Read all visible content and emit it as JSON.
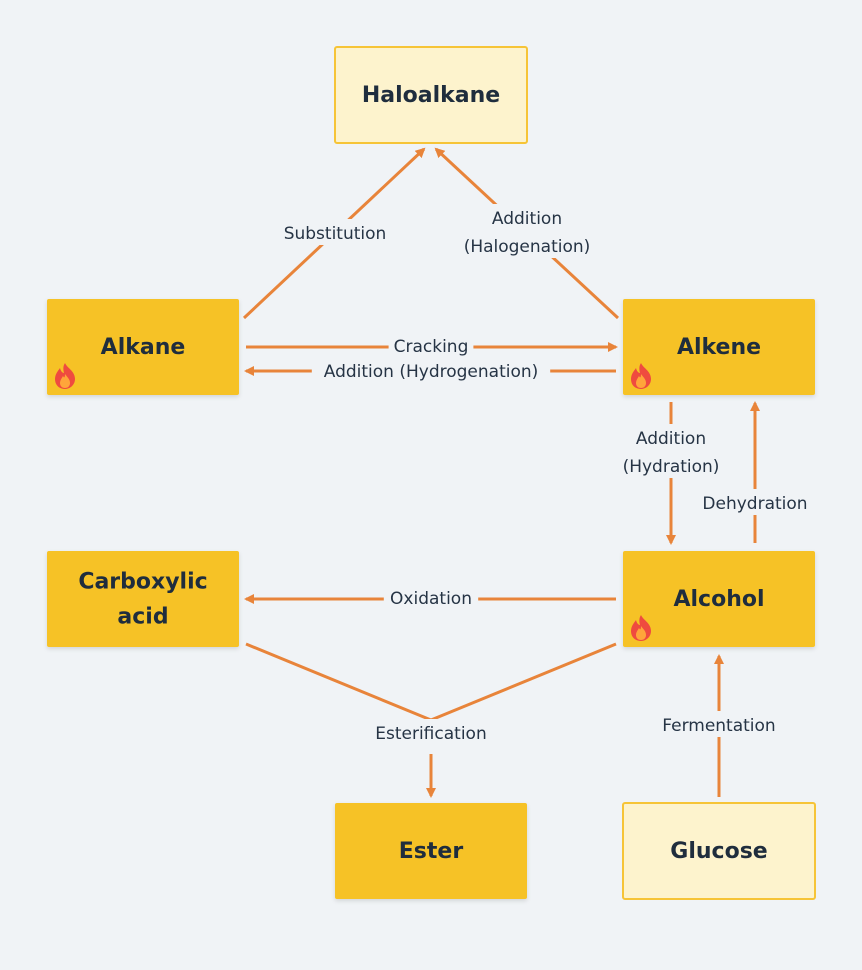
{
  "colors": {
    "background": "#f0f3f6",
    "node_solid": "#f6c228",
    "node_light": "#fdf3cd",
    "node_light_border": "#f6c437",
    "edge": "#e8843a",
    "text": "#1f2d3d"
  },
  "nodes": {
    "haloalkane": {
      "lines": [
        "Haloalkane"
      ],
      "style": "light",
      "icon": null
    },
    "alkane": {
      "lines": [
        "Alkane"
      ],
      "style": "solid",
      "icon": "fire-icon"
    },
    "alkene": {
      "lines": [
        "Alkene"
      ],
      "style": "solid",
      "icon": "fire-icon"
    },
    "carboxylic_acid": {
      "lines": [
        "Carboxylic",
        "acid"
      ],
      "style": "solid",
      "icon": null
    },
    "alcohol": {
      "lines": [
        "Alcohol"
      ],
      "style": "solid",
      "icon": "fire-icon"
    },
    "ester": {
      "lines": [
        "Ester"
      ],
      "style": "solid",
      "icon": null
    },
    "glucose": {
      "lines": [
        "Glucose"
      ],
      "style": "light",
      "icon": null
    }
  },
  "edges": [
    {
      "id": "substitution",
      "from": "alkane",
      "to": "haloalkane",
      "label": [
        "Substitution"
      ]
    },
    {
      "id": "halogenation",
      "from": "alkene",
      "to": "haloalkane",
      "label": [
        "Addition",
        "(Halogenation)"
      ]
    },
    {
      "id": "cracking",
      "from": "alkane",
      "to": "alkene",
      "label": [
        "Cracking"
      ]
    },
    {
      "id": "hydrogenation",
      "from": "alkene",
      "to": "alkane",
      "label": [
        "Addition (Hydrogenation)"
      ]
    },
    {
      "id": "hydration",
      "from": "alkene",
      "to": "alcohol",
      "label": [
        "Addition",
        "(Hydration)"
      ]
    },
    {
      "id": "dehydration",
      "from": "alcohol",
      "to": "alkene",
      "label": [
        "Dehydration"
      ]
    },
    {
      "id": "oxidation",
      "from": "alcohol",
      "to": "carboxylic_acid",
      "label": [
        "Oxidation"
      ]
    },
    {
      "id": "esterification",
      "from": [
        "carboxylic_acid",
        "alcohol"
      ],
      "to": "ester",
      "label": [
        "Esterification"
      ]
    },
    {
      "id": "fermentation",
      "from": "glucose",
      "to": "alcohol",
      "label": [
        "Fermentation"
      ]
    }
  ]
}
